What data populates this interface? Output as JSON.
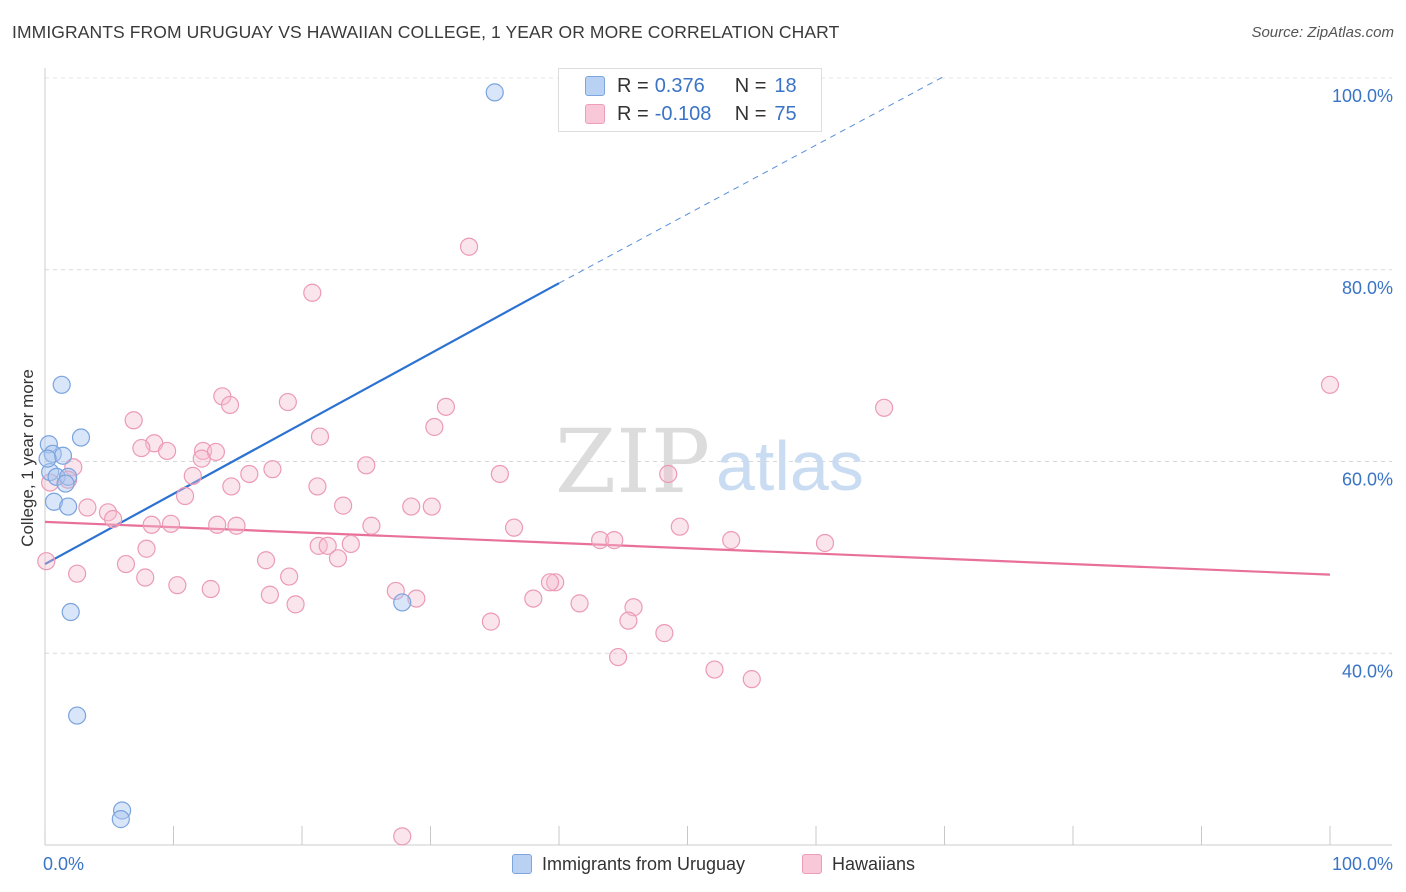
{
  "chart_data": {
    "type": "scatter",
    "title": "IMMIGRANTS FROM URUGUAY VS HAWAIIAN COLLEGE, 1 YEAR OR MORE CORRELATION CHART",
    "source": "Source: ZipAtlas.com",
    "xlabel": "",
    "ylabel": "College, 1 year or more",
    "xlim": [
      0,
      100
    ],
    "ylim": [
      20,
      100
    ],
    "x_tick_labels": [
      "0.0%",
      "100.0%"
    ],
    "y_tick_labels": [
      "40.0%",
      "60.0%",
      "80.0%",
      "100.0%"
    ],
    "y_tick_values": [
      40,
      60,
      80,
      100
    ],
    "watermark": {
      "part1": "ZIP",
      "part2": "atlas"
    },
    "colors": {
      "blue": "#2c72d2",
      "pink": "#e8709a",
      "axis_label": "#3a74c6"
    },
    "legend": [
      {
        "name": "Immigrants from Uruguay",
        "r_label": "R =",
        "r_value": "0.376",
        "n_label": "N =",
        "n_value": "18"
      },
      {
        "name": "Hawaiians",
        "r_label": "R =",
        "r_value": "-0.108",
        "n_label": "N =",
        "n_value": "75"
      }
    ],
    "series": [
      {
        "name": "Immigrants from Uruguay",
        "color": "blue",
        "points": [
          [
            35.0,
            98.5
          ],
          [
            1.3,
            68.0
          ],
          [
            2.8,
            62.5
          ],
          [
            0.3,
            61.8
          ],
          [
            0.6,
            60.8
          ],
          [
            1.4,
            60.6
          ],
          [
            0.4,
            58.9
          ],
          [
            0.9,
            58.4
          ],
          [
            1.8,
            58.4
          ],
          [
            1.6,
            57.7
          ],
          [
            0.7,
            55.8
          ],
          [
            1.8,
            55.3
          ],
          [
            27.8,
            45.3
          ],
          [
            2.0,
            44.3
          ],
          [
            2.5,
            33.5
          ],
          [
            6.0,
            23.6
          ],
          [
            5.9,
            22.7
          ],
          [
            0.2,
            60.3
          ]
        ],
        "trend": {
          "x1": 0,
          "y1": 49.3,
          "x2": 40.0,
          "y2": 78.6,
          "dash_to_x": 70.0,
          "dash_to_y": 100.2
        }
      },
      {
        "name": "Hawaiians",
        "color": "pink",
        "points": [
          [
            33.0,
            82.4
          ],
          [
            20.8,
            77.6
          ],
          [
            100.0,
            68.0
          ],
          [
            13.8,
            66.8
          ],
          [
            18.9,
            66.2
          ],
          [
            31.2,
            65.7
          ],
          [
            65.3,
            65.6
          ],
          [
            6.9,
            64.3
          ],
          [
            30.3,
            63.6
          ],
          [
            21.4,
            62.6
          ],
          [
            8.5,
            61.9
          ],
          [
            7.5,
            61.4
          ],
          [
            9.5,
            61.1
          ],
          [
            12.3,
            61.1
          ],
          [
            13.3,
            61.0
          ],
          [
            12.2,
            60.3
          ],
          [
            25.0,
            59.6
          ],
          [
            2.2,
            59.4
          ],
          [
            17.7,
            59.2
          ],
          [
            15.9,
            58.7
          ],
          [
            35.4,
            58.7
          ],
          [
            48.5,
            58.7
          ],
          [
            11.5,
            58.5
          ],
          [
            1.8,
            58.1
          ],
          [
            0.4,
            57.8
          ],
          [
            14.5,
            57.4
          ],
          [
            10.9,
            56.4
          ],
          [
            23.2,
            55.4
          ],
          [
            28.5,
            55.3
          ],
          [
            30.1,
            55.3
          ],
          [
            3.3,
            55.2
          ],
          [
            4.9,
            54.7
          ],
          [
            5.3,
            54.0
          ],
          [
            9.8,
            53.5
          ],
          [
            8.3,
            53.4
          ],
          [
            13.4,
            53.4
          ],
          [
            14.9,
            53.3
          ],
          [
            25.4,
            53.3
          ],
          [
            36.5,
            53.1
          ],
          [
            49.4,
            53.2
          ],
          [
            43.2,
            51.8
          ],
          [
            44.3,
            51.8
          ],
          [
            53.4,
            51.8
          ],
          [
            21.3,
            51.2
          ],
          [
            22.0,
            51.2
          ],
          [
            23.8,
            51.4
          ],
          [
            60.7,
            51.5
          ],
          [
            7.9,
            50.9
          ],
          [
            17.2,
            49.7
          ],
          [
            0.1,
            49.6
          ],
          [
            6.3,
            49.3
          ],
          [
            22.8,
            49.9
          ],
          [
            2.5,
            48.3
          ],
          [
            19.0,
            48.0
          ],
          [
            7.8,
            47.9
          ],
          [
            39.7,
            47.4
          ],
          [
            39.3,
            47.4
          ],
          [
            10.3,
            47.1
          ],
          [
            12.9,
            46.7
          ],
          [
            17.5,
            46.1
          ],
          [
            27.3,
            46.5
          ],
          [
            28.9,
            45.7
          ],
          [
            38.0,
            45.7
          ],
          [
            41.6,
            45.2
          ],
          [
            19.5,
            45.1
          ],
          [
            45.8,
            44.8
          ],
          [
            45.4,
            43.4
          ],
          [
            34.7,
            43.3
          ],
          [
            48.2,
            42.1
          ],
          [
            44.6,
            39.6
          ],
          [
            55.0,
            37.3
          ],
          [
            27.8,
            20.9
          ],
          [
            21.2,
            57.4
          ],
          [
            14.4,
            65.9
          ],
          [
            52.1,
            38.3
          ]
        ],
        "trend": {
          "x1": 0,
          "y1": 53.7,
          "x2": 100.0,
          "y2": 48.2
        }
      }
    ]
  }
}
